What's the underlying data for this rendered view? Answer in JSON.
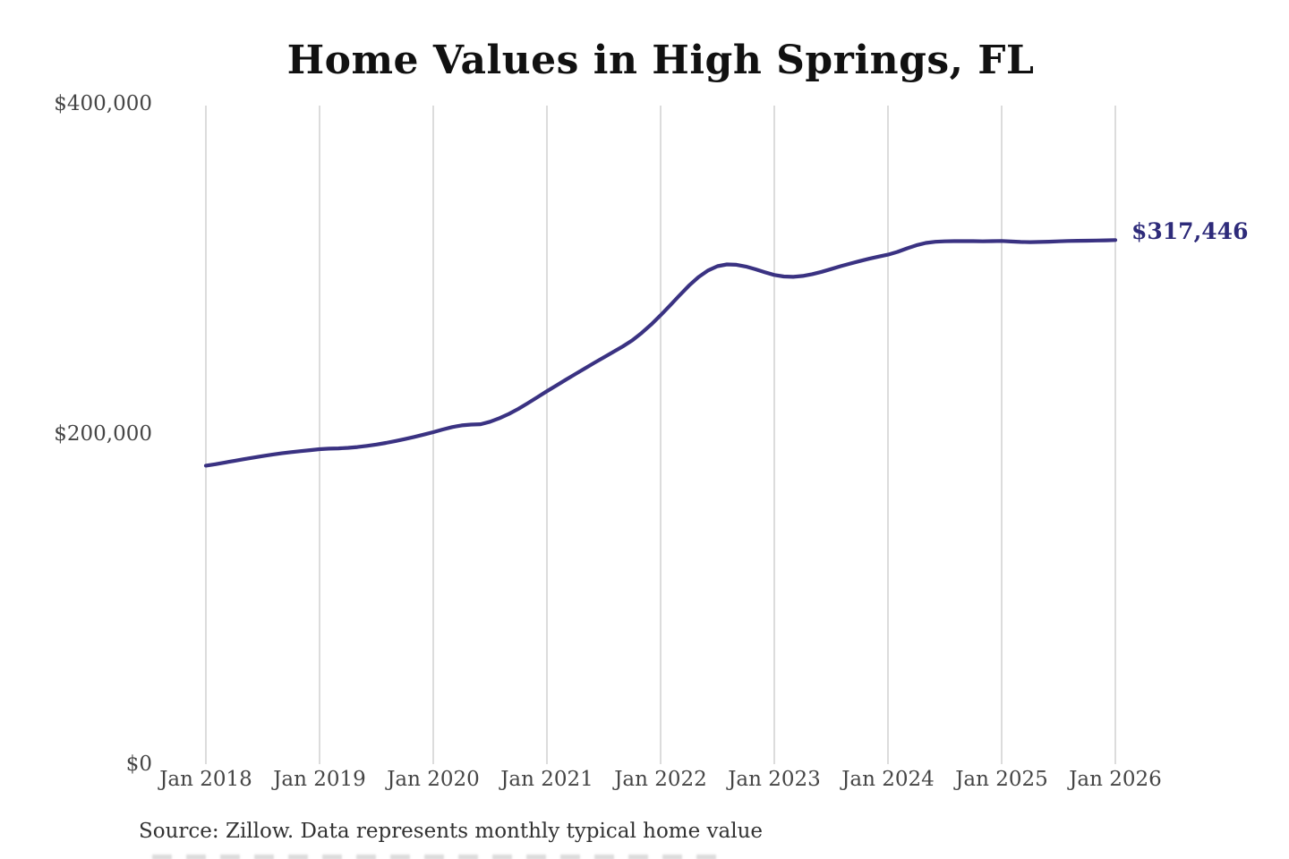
{
  "chart_data": {
    "type": "line",
    "title": "Home Values in High Springs, FL",
    "x_tick_labels": [
      "Jan 2018",
      "Jan 2019",
      "Jan 2020",
      "Jan 2021",
      "Jan 2022",
      "Jan 2023",
      "Jan 2024",
      "Jan 2025",
      "Jan 2026"
    ],
    "y_ticks": [
      {
        "label": "$0",
        "value": 0
      },
      {
        "label": "$200,000",
        "value": 200000
      },
      {
        "label": "$400,000",
        "value": 400000
      }
    ],
    "ylim": [
      0,
      400000
    ],
    "x_start": "Jan 2018",
    "x_end": "Jan 2026",
    "interval": "monthly",
    "grid": "vertical-yearly",
    "legend": "none",
    "line_color": "#3a3282",
    "grid_color": "#c9c9c9",
    "values": [
      180800,
      181700,
      182700,
      183700,
      184700,
      185700,
      186600,
      187500,
      188300,
      189000,
      189600,
      190200,
      190800,
      191100,
      191300,
      191600,
      192100,
      192800,
      193600,
      194600,
      195700,
      196900,
      198200,
      199600,
      201100,
      202700,
      204200,
      205200,
      205700,
      205900,
      207400,
      209600,
      212200,
      215300,
      218700,
      222300,
      225900,
      229400,
      232900,
      236300,
      239700,
      243100,
      246400,
      249700,
      253000,
      256700,
      261200,
      266300,
      271900,
      277900,
      284000,
      289900,
      295000,
      299000,
      301600,
      302700,
      302500,
      301400,
      299800,
      298000,
      296300,
      295400,
      295200,
      295700,
      296800,
      298200,
      299900,
      301600,
      303200,
      304700,
      306100,
      307400,
      308600,
      310300,
      312400,
      314300,
      315700,
      316400,
      316700,
      316800,
      316800,
      316800,
      316700,
      316800,
      316900,
      316600,
      316300,
      316200,
      316300,
      316500,
      316700,
      316900,
      317000,
      317100,
      317200,
      317300,
      317446
    ],
    "end_annotation": {
      "label": "$317,446",
      "value": 317446,
      "color": "#2e2b7a"
    }
  },
  "source_note": "Source: Zillow. Data represents monthly typical home value"
}
